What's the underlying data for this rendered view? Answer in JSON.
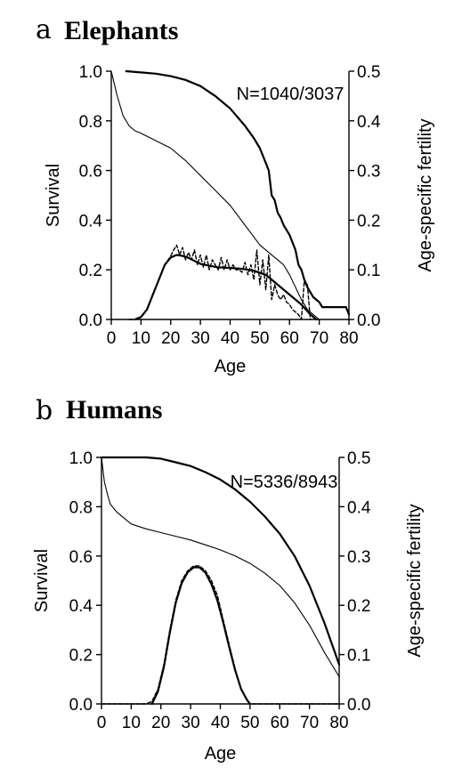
{
  "chart_data": [
    {
      "type": "line",
      "panel_letter": "a",
      "title": "Elephants",
      "xlabel": "Age",
      "ylabel": "Survival",
      "y2label": "Age-specific fertility",
      "xlim": [
        0,
        80
      ],
      "ylim": [
        0,
        1
      ],
      "y2lim": [
        0,
        0.5
      ],
      "x_ticks": [
        0,
        10,
        20,
        30,
        40,
        50,
        60,
        70,
        80
      ],
      "y_ticks": [
        "0.0",
        "0.2",
        "0.4",
        "0.6",
        "0.8",
        "1.0"
      ],
      "y2_ticks": [
        "0.0",
        "0.1",
        "0.2",
        "0.3",
        "0.4",
        "0.5"
      ],
      "grid": false,
      "annotation": "N=1040/3037",
      "series": [
        {
          "axis": "left",
          "style": "thin",
          "points": [
            [
              0,
              1.0
            ],
            [
              1,
              0.95
            ],
            [
              2,
              0.9
            ],
            [
              3,
              0.86
            ],
            [
              4,
              0.82
            ],
            [
              5,
              0.8
            ],
            [
              6,
              0.78
            ],
            [
              8,
              0.76
            ],
            [
              10,
              0.75
            ],
            [
              15,
              0.72
            ],
            [
              20,
              0.69
            ],
            [
              25,
              0.64
            ],
            [
              30,
              0.58
            ],
            [
              35,
              0.52
            ],
            [
              40,
              0.46
            ],
            [
              45,
              0.38
            ],
            [
              50,
              0.3
            ],
            [
              55,
              0.25
            ],
            [
              58,
              0.22
            ],
            [
              60,
              0.18
            ],
            [
              62,
              0.13
            ],
            [
              64,
              0.08
            ],
            [
              66,
              0.04
            ],
            [
              68,
              0.02
            ],
            [
              70,
              0.0
            ]
          ]
        },
        {
          "axis": "left",
          "style": "thick",
          "points": [
            [
              5,
              1.0
            ],
            [
              10,
              0.995
            ],
            [
              15,
              0.99
            ],
            [
              20,
              0.98
            ],
            [
              25,
              0.965
            ],
            [
              30,
              0.94
            ],
            [
              35,
              0.9
            ],
            [
              40,
              0.85
            ],
            [
              45,
              0.78
            ],
            [
              48,
              0.73
            ],
            [
              50,
              0.69
            ],
            [
              52,
              0.63
            ],
            [
              53,
              0.6
            ],
            [
              54,
              0.5
            ],
            [
              55,
              0.48
            ],
            [
              56,
              0.43
            ],
            [
              57,
              0.41
            ],
            [
              58,
              0.38
            ],
            [
              60,
              0.34
            ],
            [
              62,
              0.28
            ],
            [
              63,
              0.22
            ],
            [
              64,
              0.2
            ],
            [
              65,
              0.16
            ],
            [
              66,
              0.13
            ],
            [
              67,
              0.11
            ],
            [
              68,
              0.09
            ],
            [
              70,
              0.07
            ],
            [
              71,
              0.05
            ],
            [
              75,
              0.05
            ],
            [
              79,
              0.05
            ],
            [
              80,
              0.02
            ]
          ]
        },
        {
          "axis": "right",
          "style": "dashed",
          "points": [
            [
              6,
              0.0
            ],
            [
              8,
              0.0
            ],
            [
              10,
              0.005
            ],
            [
              12,
              0.02
            ],
            [
              14,
              0.05
            ],
            [
              16,
              0.08
            ],
            [
              18,
              0.11
            ],
            [
              20,
              0.128
            ],
            [
              21,
              0.14
            ],
            [
              22,
              0.15
            ],
            [
              23,
              0.13
            ],
            [
              24,
              0.145
            ],
            [
              25,
              0.12
            ],
            [
              26,
              0.135
            ],
            [
              27,
              0.12
            ],
            [
              28,
              0.14
            ],
            [
              29,
              0.11
            ],
            [
              30,
              0.13
            ],
            [
              31,
              0.105
            ],
            [
              32,
              0.13
            ],
            [
              33,
              0.1
            ],
            [
              34,
              0.12
            ],
            [
              35,
              0.11
            ],
            [
              36,
              0.1
            ],
            [
              37,
              0.125
            ],
            [
              38,
              0.1
            ],
            [
              39,
              0.12
            ],
            [
              40,
              0.1
            ],
            [
              41,
              0.11
            ],
            [
              42,
              0.1
            ],
            [
              43,
              0.1
            ],
            [
              44,
              0.095
            ],
            [
              45,
              0.115
            ],
            [
              46,
              0.09
            ],
            [
              47,
              0.11
            ],
            [
              48,
              0.08
            ],
            [
              49,
              0.14
            ],
            [
              50,
              0.07
            ],
            [
              51,
              0.12
            ],
            [
              52,
              0.06
            ],
            [
              53,
              0.13
            ],
            [
              54,
              0.04
            ],
            [
              55,
              0.07
            ],
            [
              56,
              0.05
            ],
            [
              57,
              0.04
            ],
            [
              58,
              0.05
            ],
            [
              59,
              0.035
            ],
            [
              60,
              0.03
            ],
            [
              61,
              0.02
            ],
            [
              62,
              0.015
            ],
            [
              63,
              0.01
            ],
            [
              64,
              0.0
            ],
            [
              65,
              0.08
            ],
            [
              66,
              0.07
            ],
            [
              67,
              0.0
            ]
          ]
        },
        {
          "axis": "right",
          "style": "thick",
          "points": [
            [
              8,
              0.0
            ],
            [
              10,
              0.005
            ],
            [
              12,
              0.02
            ],
            [
              14,
              0.05
            ],
            [
              16,
              0.08
            ],
            [
              18,
              0.11
            ],
            [
              20,
              0.125
            ],
            [
              22,
              0.13
            ],
            [
              24,
              0.128
            ],
            [
              26,
              0.124
            ],
            [
              28,
              0.118
            ],
            [
              30,
              0.112
            ],
            [
              33,
              0.108
            ],
            [
              36,
              0.105
            ],
            [
              40,
              0.104
            ],
            [
              44,
              0.102
            ],
            [
              48,
              0.098
            ],
            [
              52,
              0.09
            ],
            [
              55,
              0.075
            ],
            [
              58,
              0.06
            ],
            [
              61,
              0.045
            ],
            [
              64,
              0.03
            ],
            [
              67,
              0.01
            ],
            [
              69,
              0.0
            ]
          ]
        }
      ]
    },
    {
      "type": "line",
      "panel_letter": "b",
      "title": "Humans",
      "xlabel": "Age",
      "ylabel": "Survival",
      "y2label": "Age-specific fertility",
      "xlim": [
        0,
        80
      ],
      "ylim": [
        0,
        1
      ],
      "y2lim": [
        0,
        0.5
      ],
      "x_ticks": [
        0,
        10,
        20,
        30,
        40,
        50,
        60,
        70,
        80
      ],
      "y_ticks": [
        "0.0",
        "0.2",
        "0.4",
        "0.6",
        "0.8",
        "1.0"
      ],
      "y2_ticks": [
        "0.0",
        "0.1",
        "0.2",
        "0.3",
        "0.4",
        "0.5"
      ],
      "grid": false,
      "annotation": "N=5336/8943",
      "series": [
        {
          "axis": "left",
          "style": "thin",
          "points": [
            [
              0,
              1.0
            ],
            [
              1,
              0.9
            ],
            [
              2,
              0.85
            ],
            [
              3,
              0.81
            ],
            [
              5,
              0.78
            ],
            [
              8,
              0.75
            ],
            [
              10,
              0.73
            ],
            [
              15,
              0.71
            ],
            [
              20,
              0.695
            ],
            [
              25,
              0.68
            ],
            [
              30,
              0.665
            ],
            [
              35,
              0.645
            ],
            [
              40,
              0.625
            ],
            [
              45,
              0.6
            ],
            [
              50,
              0.57
            ],
            [
              55,
              0.53
            ],
            [
              60,
              0.48
            ],
            [
              65,
              0.41
            ],
            [
              70,
              0.32
            ],
            [
              75,
              0.21
            ],
            [
              80,
              0.11
            ]
          ]
        },
        {
          "axis": "left",
          "style": "thick",
          "points": [
            [
              0,
              1.0
            ],
            [
              5,
              1.0
            ],
            [
              10,
              1.0
            ],
            [
              15,
              1.0
            ],
            [
              20,
              0.995
            ],
            [
              25,
              0.98
            ],
            [
              30,
              0.965
            ],
            [
              35,
              0.94
            ],
            [
              40,
              0.91
            ],
            [
              45,
              0.87
            ],
            [
              50,
              0.82
            ],
            [
              55,
              0.76
            ],
            [
              60,
              0.69
            ],
            [
              65,
              0.6
            ],
            [
              70,
              0.48
            ],
            [
              75,
              0.33
            ],
            [
              80,
              0.16
            ]
          ]
        },
        {
          "axis": "right",
          "style": "dashed",
          "points": [
            [
              0,
              0.0
            ],
            [
              15,
              0.0
            ],
            [
              17,
              0.005
            ],
            [
              19,
              0.03
            ],
            [
              21,
              0.08
            ],
            [
              23,
              0.15
            ],
            [
              25,
              0.21
            ],
            [
              27,
              0.25
            ],
            [
              29,
              0.27
            ],
            [
              31,
              0.28
            ],
            [
              33,
              0.28
            ],
            [
              35,
              0.27
            ],
            [
              37,
              0.25
            ],
            [
              39,
              0.22
            ],
            [
              41,
              0.17
            ],
            [
              43,
              0.12
            ],
            [
              45,
              0.07
            ],
            [
              47,
              0.03
            ],
            [
              49,
              0.008
            ],
            [
              50,
              0.0
            ],
            [
              80,
              0.0
            ]
          ]
        },
        {
          "axis": "right",
          "style": "thick",
          "points": [
            [
              17,
              0.0
            ],
            [
              19,
              0.025
            ],
            [
              21,
              0.075
            ],
            [
              23,
              0.145
            ],
            [
              25,
              0.205
            ],
            [
              27,
              0.245
            ],
            [
              29,
              0.267
            ],
            [
              31,
              0.277
            ],
            [
              33,
              0.277
            ],
            [
              35,
              0.266
            ],
            [
              37,
              0.243
            ],
            [
              39,
              0.21
            ],
            [
              41,
              0.165
            ],
            [
              43,
              0.115
            ],
            [
              45,
              0.068
            ],
            [
              47,
              0.03
            ],
            [
              49,
              0.008
            ],
            [
              50,
              0.0
            ]
          ]
        }
      ]
    }
  ]
}
